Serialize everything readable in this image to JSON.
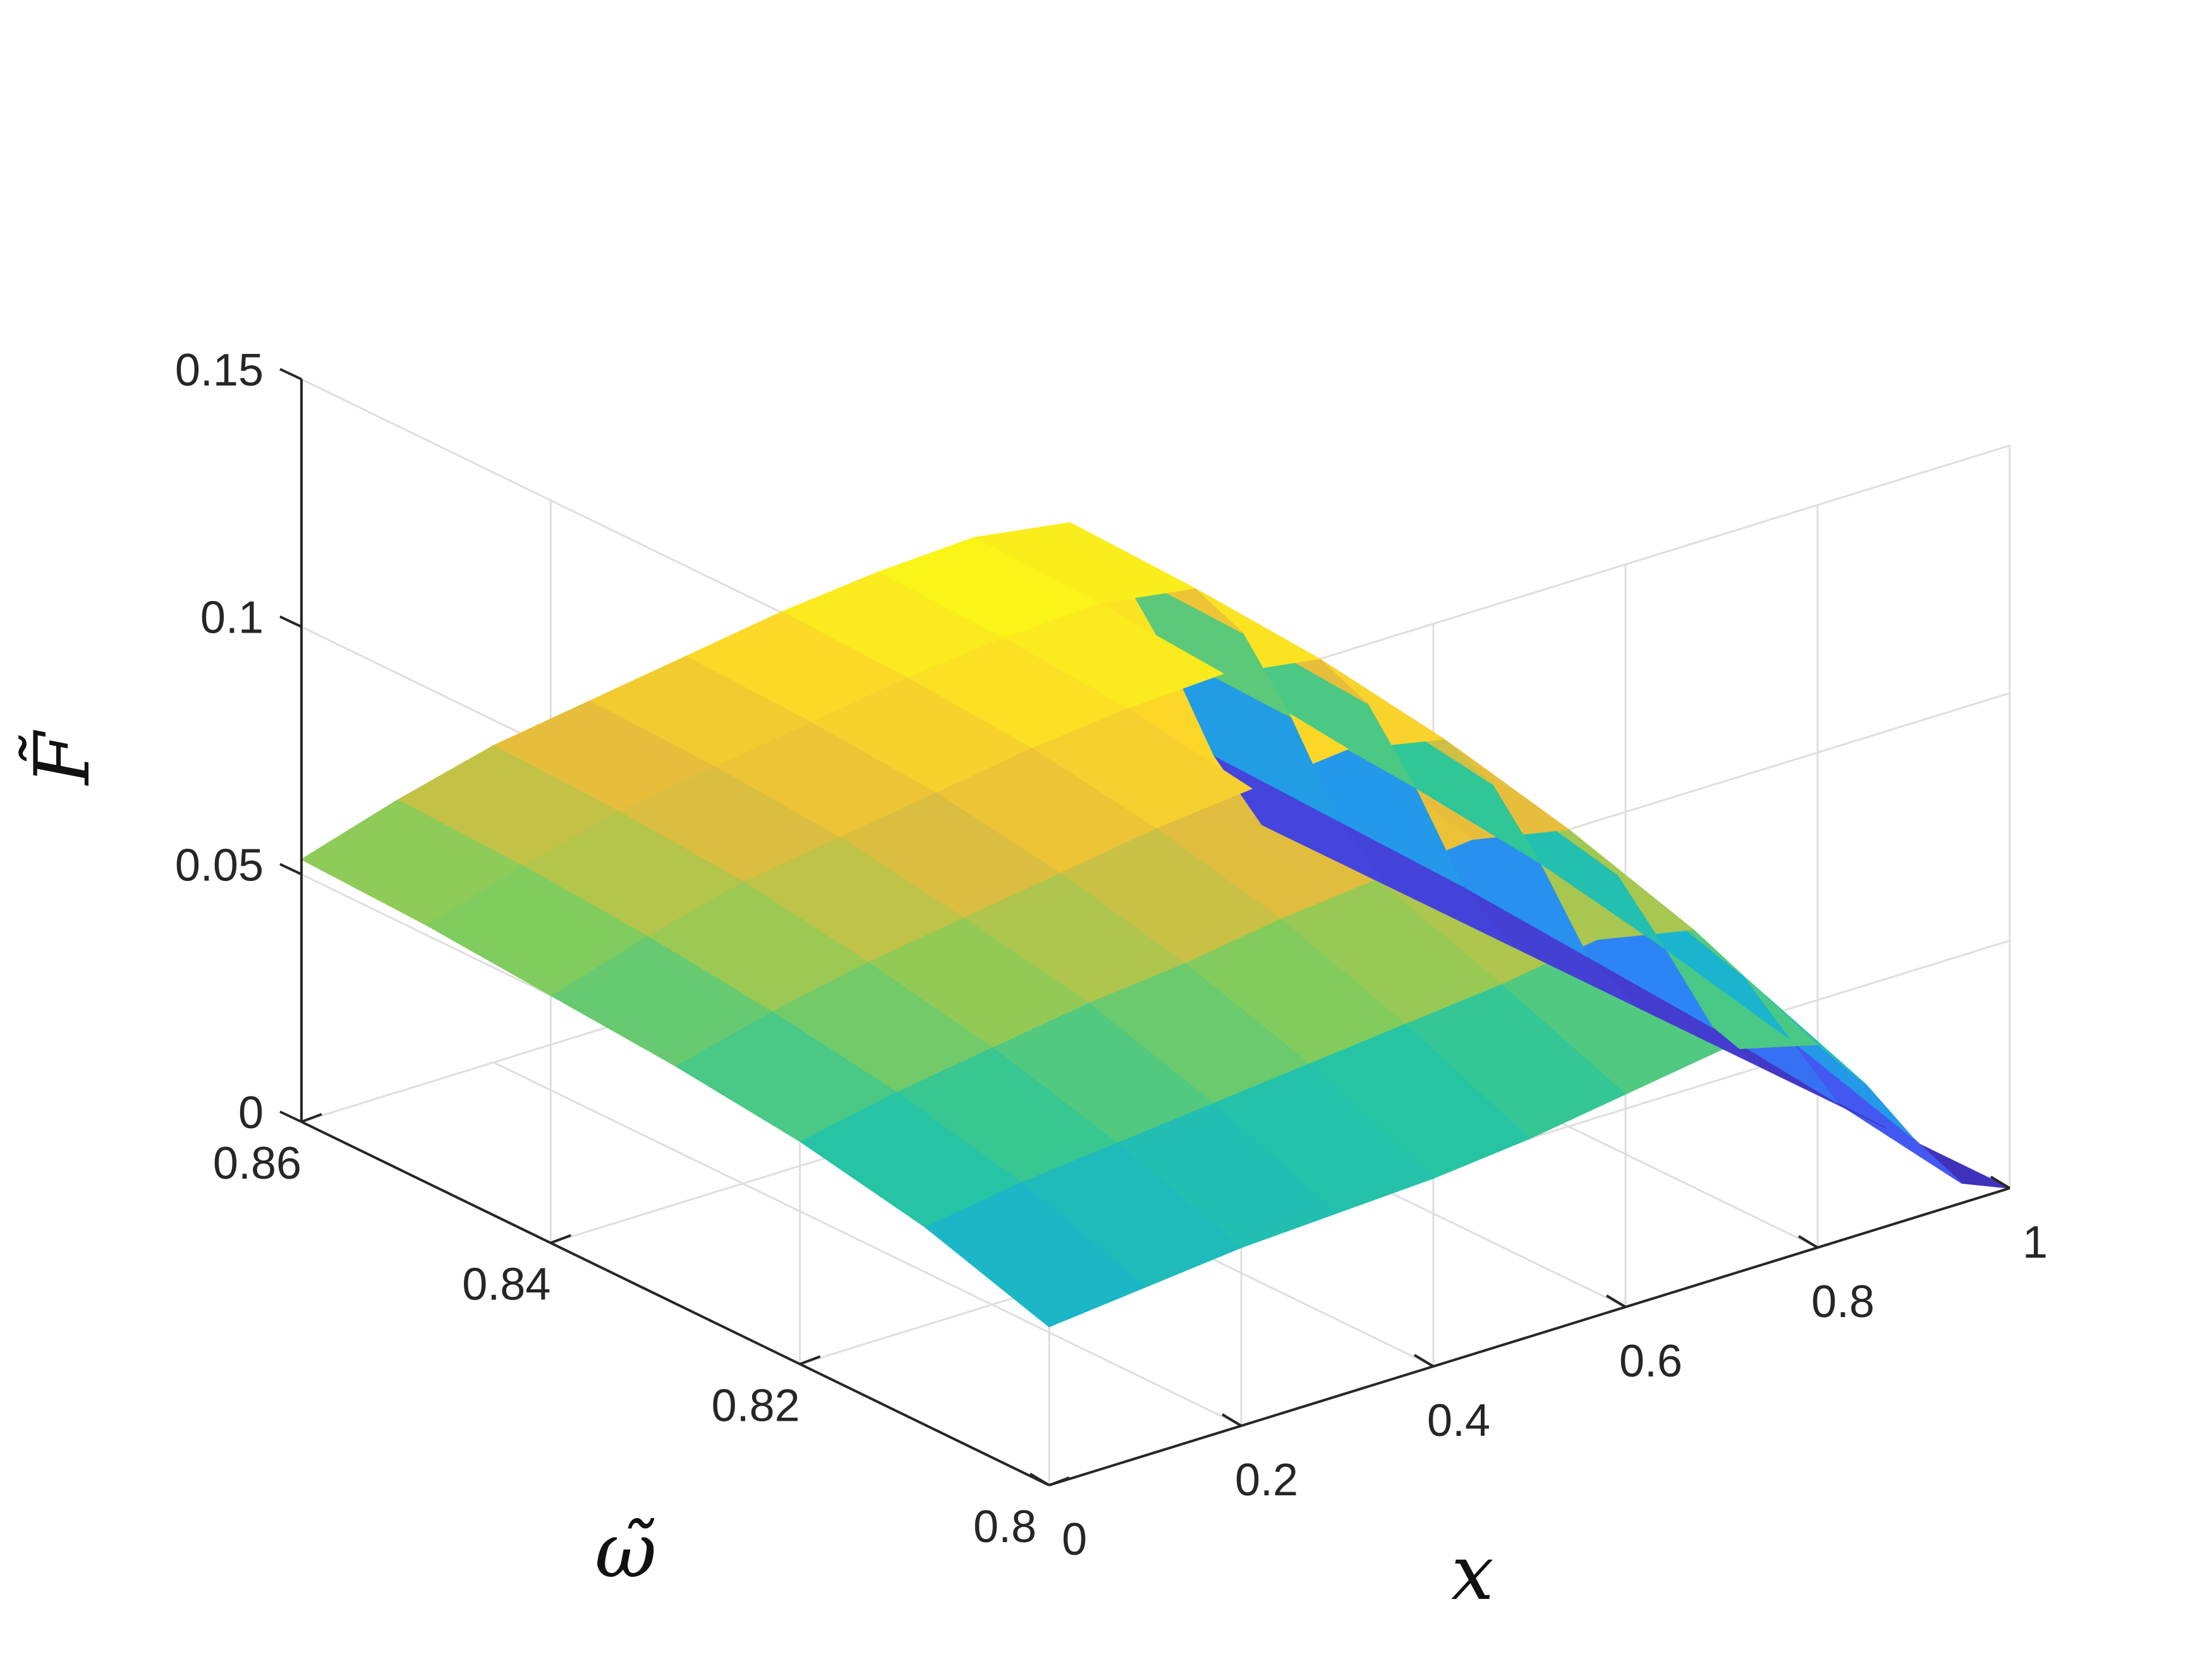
{
  "chart_data": {
    "type": "surface",
    "xlabel": "x",
    "ylabel": "ω̃",
    "zlabel": "F̃",
    "x_ticks": [
      "0",
      "0.2",
      "0.4",
      "0.6",
      "0.8",
      "1"
    ],
    "y_ticks": [
      "0.8",
      "0.82",
      "0.84",
      "0.86"
    ],
    "z_ticks": [
      "0",
      "0.05",
      "0.1",
      "0.15"
    ],
    "xlim": [
      0,
      1
    ],
    "ylim": [
      0.8,
      0.86
    ],
    "zlim": [
      0,
      0.15
    ],
    "grid": true,
    "colormap": "parula",
    "colors": {
      "axis": "#262626",
      "grid": "#dedede",
      "background": "#ffffff"
    },
    "x": [
      0,
      0.1,
      0.2,
      0.3,
      0.4,
      0.5,
      0.6,
      0.7,
      0.8,
      0.85,
      0.9,
      0.95,
      1
    ],
    "omega": [
      0.8,
      0.81,
      0.82,
      0.83,
      0.84,
      0.85,
      0.86
    ],
    "z": [
      [
        0.032,
        0.034,
        0.036,
        0.037,
        0.038,
        0.04,
        0.043,
        0.046,
        0.041,
        0.03,
        0.016,
        0.004,
        0.0
      ],
      [
        0.04,
        0.043,
        0.045,
        0.047,
        0.049,
        0.051,
        0.053,
        0.056,
        0.052,
        0.04,
        0.024,
        0.008,
        0.0
      ],
      [
        0.045,
        0.049,
        0.052,
        0.055,
        0.057,
        0.06,
        0.062,
        0.064,
        0.06,
        0.048,
        0.03,
        0.011,
        0.0
      ],
      [
        0.048,
        0.053,
        0.057,
        0.06,
        0.063,
        0.066,
        0.068,
        0.07,
        0.066,
        0.054,
        0.035,
        0.013,
        0.0
      ],
      [
        0.05,
        0.056,
        0.061,
        0.064,
        0.067,
        0.07,
        0.072,
        0.073,
        0.07,
        0.058,
        0.038,
        0.015,
        0.0
      ],
      [
        0.052,
        0.058,
        0.063,
        0.066,
        0.069,
        0.072,
        0.074,
        0.075,
        0.072,
        0.06,
        0.04,
        0.016,
        0.0
      ],
      [
        0.053,
        0.059,
        0.064,
        0.067,
        0.07,
        0.073,
        0.075,
        0.076,
        0.073,
        0.061,
        0.041,
        0.017,
        0.0
      ]
    ]
  }
}
